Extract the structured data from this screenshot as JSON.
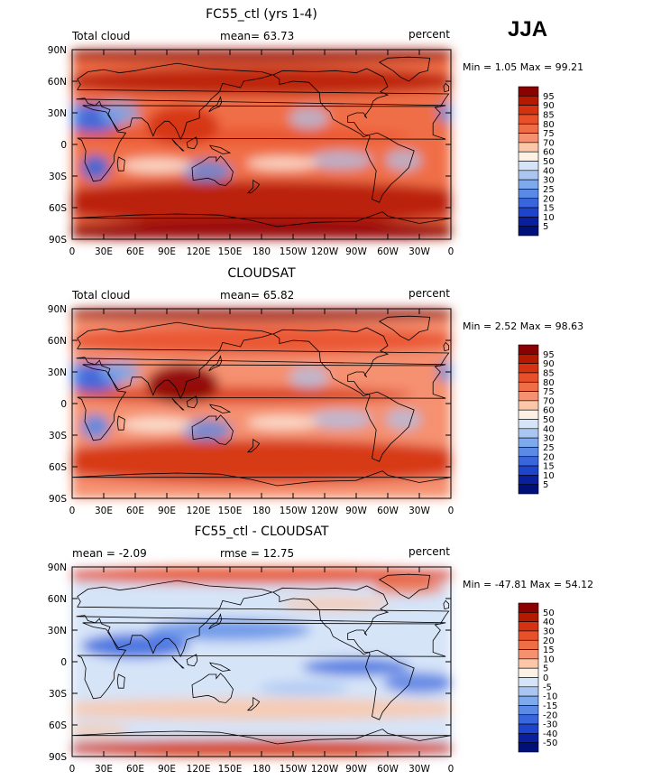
{
  "season": "JJA",
  "panels": [
    {
      "title": "FC55_ctl (yrs 1-4)",
      "left_label": "Total cloud",
      "center_label": "mean=  63.73",
      "right_label": "percent",
      "minmax": "Min =    1.05 Max =   99.21",
      "colorbar": [
        "95",
        "90",
        "85",
        "80",
        "75",
        "70",
        "60",
        "50",
        "40",
        "30",
        "25",
        "20",
        "15",
        "10",
        "5"
      ]
    },
    {
      "title": "CLOUDSAT",
      "left_label": "Total cloud",
      "center_label": "mean=  65.82",
      "right_label": "percent",
      "minmax": "Min =    2.52 Max =   98.63",
      "colorbar": [
        "95",
        "90",
        "85",
        "80",
        "75",
        "70",
        "60",
        "50",
        "40",
        "30",
        "25",
        "20",
        "15",
        "10",
        "5"
      ]
    },
    {
      "title": "FC55_ctl - CLOUDSAT",
      "left_label": "mean =  -2.09",
      "center_label": "rmse =   12.75",
      "right_label": "percent",
      "minmax": "Min = -47.81 Max =   54.12",
      "colorbar": [
        "50",
        "40",
        "30",
        "20",
        "15",
        "10",
        "5",
        "0",
        "-5",
        "-10",
        "-15",
        "-20",
        "-30",
        "-40",
        "-50"
      ]
    }
  ],
  "lat_labels": [
    "90N",
    "60N",
    "30N",
    "0",
    "30S",
    "60S",
    "90S"
  ],
  "lon_labels": [
    "0",
    "30E",
    "60E",
    "90E",
    "120E",
    "150E",
    "180",
    "150W",
    "120W",
    "90W",
    "60W",
    "30W",
    "0"
  ],
  "colors": {
    "abs_scale": [
      "#8b0000",
      "#b51a00",
      "#d43210",
      "#e8502a",
      "#f06e46",
      "#f59070",
      "#fbc7a8",
      "#fdf0e4",
      "#d6e4f8",
      "#a9c6f2",
      "#7ea9ec",
      "#5a8ae6",
      "#3a66dd",
      "#1f44cc",
      "#0a1f9e",
      "#00107a"
    ],
    "diff_scale": [
      "#8b0000",
      "#b51a00",
      "#d43210",
      "#e8502a",
      "#f06e46",
      "#f59070",
      "#fbc7a8",
      "#fdf0e4",
      "#d6e4f8",
      "#a9c6f2",
      "#7ea9ec",
      "#5a8ae6",
      "#3a66dd",
      "#1f44cc",
      "#0a1f9e",
      "#00107a"
    ]
  }
}
